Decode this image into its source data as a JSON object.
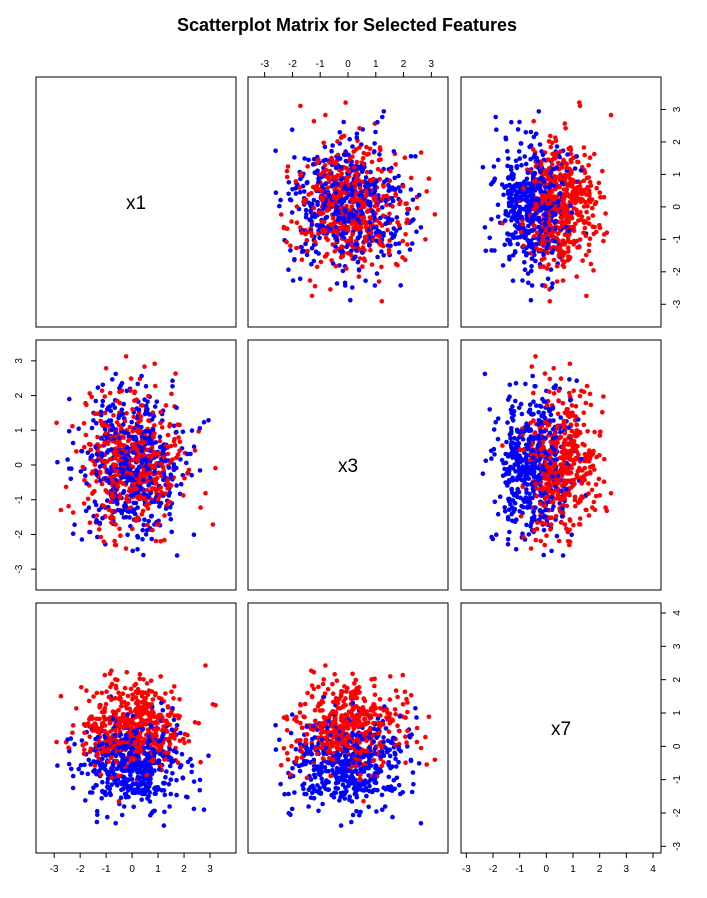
{
  "chart_data": {
    "type": "scatter",
    "title": "Scatterplot Matrix for Selected Features",
    "variables": [
      "x1",
      "x3",
      "x7"
    ],
    "axes": {
      "x1": {
        "range": [
          -3.7,
          4.0
        ],
        "ticks": [
          -3,
          -2,
          -1,
          0,
          1,
          2,
          3
        ]
      },
      "x3": {
        "range": [
          -3.6,
          3.6
        ],
        "ticks": [
          -3,
          -2,
          -1,
          0,
          1,
          2,
          3
        ]
      },
      "x7": {
        "range": [
          -3.2,
          4.3
        ],
        "ticks": [
          -3,
          -2,
          -1,
          0,
          1,
          2,
          3,
          4
        ]
      }
    },
    "series": [
      {
        "color": "#0000ff",
        "n": 500,
        "mean": {
          "x1": 0.0,
          "x3": 0.0,
          "x7": -0.55
        },
        "sd": {
          "x1": 1.0,
          "x3": 1.0,
          "x7": 0.7
        }
      },
      {
        "color": "#ff0000",
        "n": 500,
        "mean": {
          "x1": 0.0,
          "x3": 0.0,
          "x7": 0.55
        },
        "sd": {
          "x1": 1.0,
          "x3": 1.0,
          "x7": 0.7
        }
      }
    ],
    "grid": false,
    "legend": "none"
  }
}
